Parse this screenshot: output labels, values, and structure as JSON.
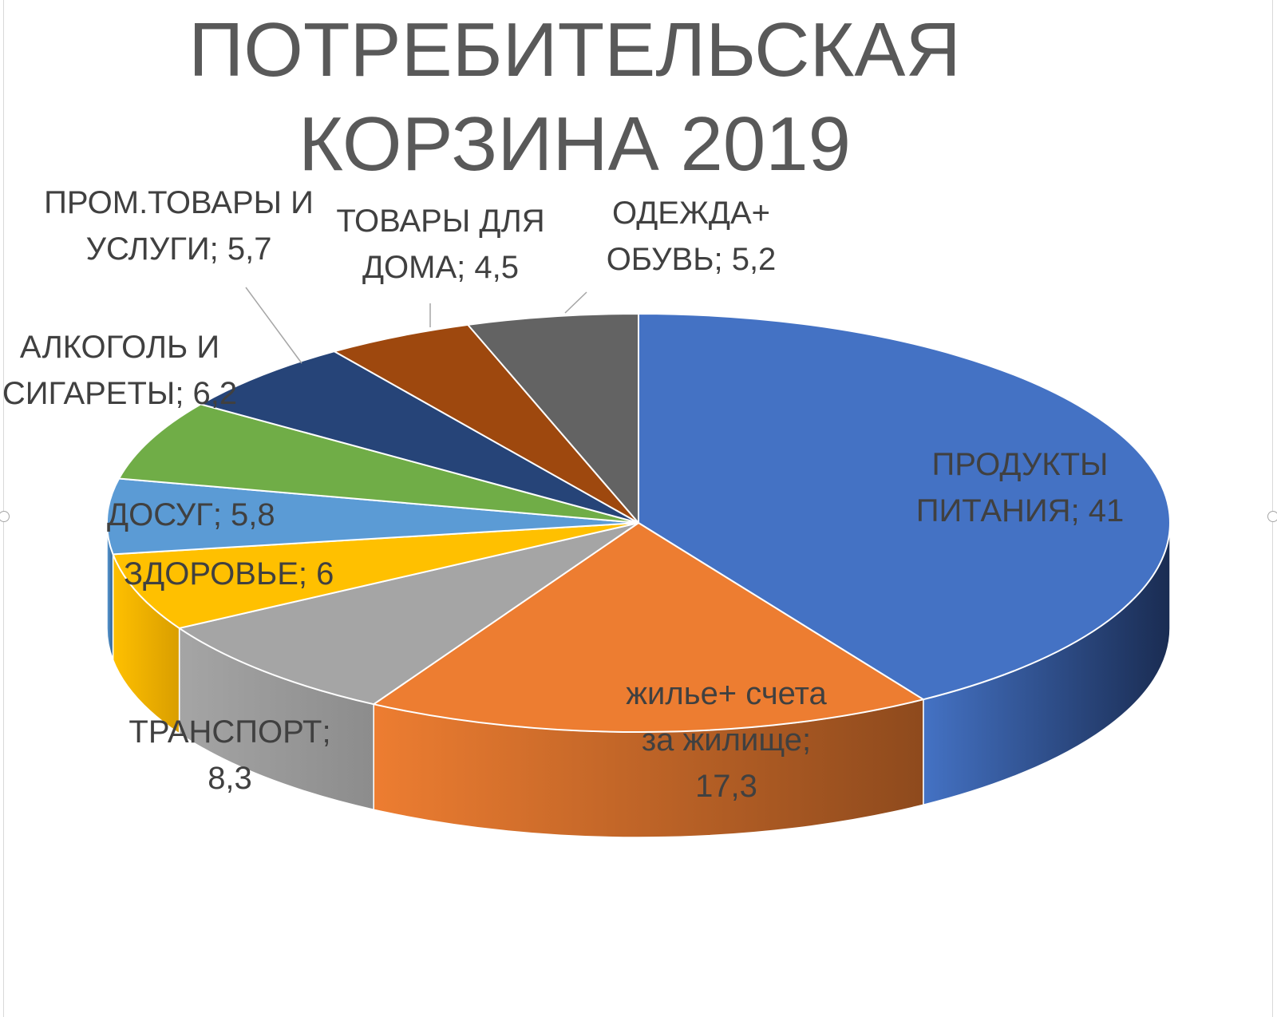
{
  "chart_data": {
    "type": "pie",
    "title": "ПОТРЕБИТЕЛЬСКАЯ КОРЗИНА 2019",
    "title_lines": [
      "ПОТРЕБИТЕЛЬСКАЯ",
      "КОРЗИНА 2019"
    ],
    "style": "3d",
    "legend": "none",
    "slices": [
      {
        "category": "ПРОДУКТЫ ПИТАНИЯ",
        "value": 41,
        "value_label": "41",
        "color": "#4472C4",
        "side_color": "#1A2C52",
        "label_lines": [
          "ПРОДУКТЫ",
          "ПИТАНИЯ; 41"
        ]
      },
      {
        "category": "жилье+ счета за жилище",
        "value": 17.3,
        "value_label": "17,3",
        "color": "#ED7D31",
        "side_color": "#8E4A1D",
        "label_lines": [
          "жилье+ счета",
          "за жилище;",
          "17,3"
        ]
      },
      {
        "category": "ТРАНСПОРТ",
        "value": 8.3,
        "value_label": "8,3",
        "color": "#A5A5A5",
        "side_color": "#8C8C8C",
        "label_lines": [
          "ТРАНСПОРТ;",
          "8,3"
        ]
      },
      {
        "category": "ЗДОРОВЬЕ",
        "value": 6,
        "value_label": "6",
        "color": "#FFC000",
        "side_color": "#D99E00",
        "label_lines": [
          "ЗДОРОВЬЕ; 6"
        ]
      },
      {
        "category": "ДОСУГ",
        "value": 5.8,
        "value_label": "5,8",
        "color": "#5B9BD5",
        "side_color": "#2E5F8E",
        "label_lines": [
          "ДОСУГ; 5,8"
        ]
      },
      {
        "category": "АЛКОГОЛЬ И СИГАРЕТЫ",
        "value": 6.2,
        "value_label": "6,2",
        "color": "#70AD47",
        "side_color": "#3F6827",
        "label_lines": [
          "АЛКОГОЛЬ И",
          "СИГАРЕТЫ; 6,2"
        ]
      },
      {
        "category": "ПРОМ.ТОВАРЫ И УСЛУГИ",
        "value": 5.7,
        "value_label": "5,7",
        "color": "#264478",
        "side_color": "#142646",
        "label_lines": [
          "ПРОМ.ТОВАРЫ И",
          "УСЛУГИ; 5,7"
        ]
      },
      {
        "category": "ТОВАРЫ ДЛЯ ДОМА",
        "value": 4.5,
        "value_label": "4,5",
        "color": "#9E480E",
        "side_color": "#5E2B08",
        "label_lines": [
          "ТОВАРЫ ДЛЯ",
          "ДОМА; 4,5"
        ]
      },
      {
        "category": "ОДЕЖДА+ ОБУВЬ",
        "value": 5.2,
        "value_label": "5,2",
        "color": "#636363",
        "side_color": "#3E3E3E",
        "label_lines": [
          "ОДЕЖДА+",
          "ОБУВЬ; 5,2"
        ]
      }
    ]
  }
}
